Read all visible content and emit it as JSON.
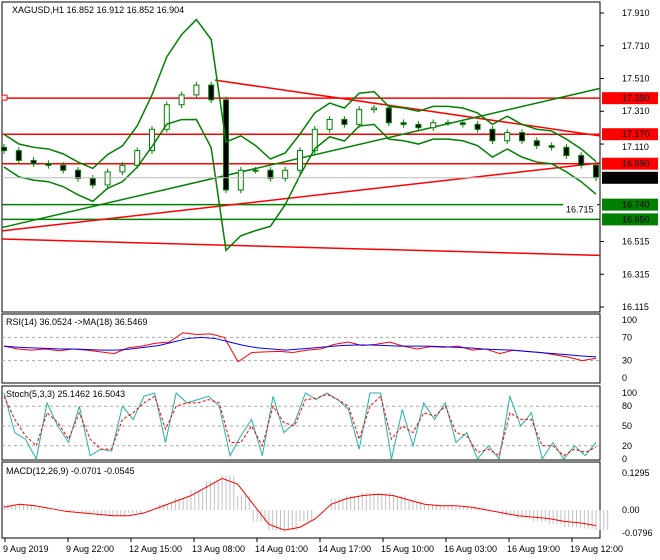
{
  "chart_data": {
    "type": "candlestick",
    "symbol_label": "XAGUSD,H1",
    "ohlc_label": "16.852 16.912 16.852 16.904",
    "price_axis": {
      "range": [
        16.115,
        17.91
      ],
      "ticks": [
        "17.910",
        "17.710",
        "17.510",
        "17.310",
        "17.110",
        "16.515",
        "16.315",
        "16.115"
      ]
    },
    "last_price": "16.904",
    "levels": [
      {
        "label": "17.390",
        "value": 17.39,
        "color": "#ff0000"
      },
      {
        "label": "17.170",
        "value": 17.17,
        "color": "#ff0000"
      },
      {
        "label": "16.990",
        "value": 16.99,
        "color": "#ff0000"
      },
      {
        "label": "16.740",
        "value": 16.74,
        "color": "#008000"
      },
      {
        "label": "16.650",
        "value": 16.65,
        "color": "#008000"
      }
    ],
    "hidden_label": "16.715",
    "closes": [
      17.07,
      17.01,
      16.99,
      16.98,
      16.95,
      16.9,
      16.86,
      16.94,
      16.98,
      17.07,
      17.2,
      17.35,
      17.41,
      17.47,
      17.38,
      16.83,
      16.95,
      16.95,
      16.9,
      16.95,
      17.07,
      17.2,
      17.26,
      17.23,
      17.32,
      17.33,
      17.24,
      17.23,
      17.21,
      17.24,
      17.24,
      17.23,
      17.2,
      17.13,
      17.18,
      17.13,
      17.1,
      17.09,
      17.04,
      16.98,
      16.904
    ],
    "time_labels": [
      "9 Aug 2019",
      "9 Aug 22:00",
      "12 Aug 15:00",
      "13 Aug 08:00",
      "14 Aug 01:00",
      "14 Aug 17:00",
      "15 Aug 10:00",
      "16 Aug 03:00",
      "16 Aug 19:00",
      "19 Aug 12:00"
    ],
    "rsi": {
      "label": "RSI(14) 36.0524  ->MA(18) 36.5469",
      "ticks": [
        "100",
        "70",
        "30",
        "0"
      ],
      "levels": [
        70,
        30
      ],
      "values": [
        55,
        50,
        48,
        50,
        47,
        50,
        48,
        45,
        42,
        52,
        55,
        60,
        62,
        78,
        75,
        76,
        70,
        28,
        44,
        45,
        46,
        44,
        48,
        50,
        58,
        62,
        56,
        58,
        62,
        55,
        50,
        54,
        53,
        55,
        48,
        50,
        42,
        48,
        46,
        44,
        40,
        36,
        30,
        34
      ],
      "ma_values": [
        55,
        53,
        52,
        51,
        50,
        50,
        49,
        48,
        48,
        50,
        53,
        56,
        62,
        68,
        70,
        68,
        62,
        56,
        52,
        50,
        48,
        50,
        52,
        54,
        56,
        57,
        57,
        56,
        55,
        55,
        55,
        54,
        53,
        52,
        50,
        49,
        48,
        46,
        44,
        42,
        40,
        38,
        36.5
      ]
    },
    "stoch": {
      "label": "Stoch(5,3,3) 25.1462 16.5043",
      "ticks": [
        "100",
        "80",
        "50",
        "20",
        "0"
      ],
      "levels": [
        80,
        50,
        20
      ],
      "main_values": [
        100,
        40,
        30,
        0,
        85,
        50,
        25,
        80,
        5,
        15,
        12,
        80,
        60,
        95,
        100,
        25,
        100,
        85,
        90,
        95,
        80,
        5,
        35,
        60,
        5,
        95,
        40,
        55,
        100,
        90,
        100,
        90,
        75,
        15,
        100,
        100,
        0,
        75,
        20,
        85,
        60,
        85,
        25,
        40,
        0,
        20,
        0,
        95,
        50,
        70,
        0,
        25,
        0,
        20,
        5,
        25
      ],
      "signal_values": [
        95,
        60,
        35,
        20,
        70,
        55,
        30,
        70,
        30,
        15,
        15,
        60,
        70,
        85,
        95,
        45,
        80,
        85,
        85,
        90,
        85,
        25,
        25,
        50,
        20,
        80,
        55,
        50,
        90,
        92,
        98,
        90,
        80,
        30,
        80,
        95,
        30,
        50,
        40,
        70,
        65,
        80,
        40,
        35,
        10,
        15,
        5,
        70,
        60,
        60,
        20,
        20,
        5,
        15,
        10,
        18
      ]
    },
    "macd": {
      "label": "MACD(12,26,9) -0.0701 -0.0545",
      "ticks": [
        "0.1295",
        "0.00",
        "-0.0796"
      ],
      "range": [
        -0.0796,
        0.1295
      ],
      "histogram": [
        0.02,
        0.02,
        0.01,
        0.0,
        -0.005,
        -0.01,
        -0.02,
        -0.02,
        -0.01,
        0.0,
        0.02,
        0.04,
        0.07,
        0.1,
        0.12,
        0.05,
        -0.04,
        -0.07,
        -0.07,
        -0.04,
        0.0,
        0.04,
        0.05,
        0.06,
        0.06,
        0.05,
        0.03,
        0.02,
        0.015,
        0.01,
        0.01,
        0.0,
        -0.02,
        -0.03,
        -0.04,
        -0.05,
        -0.06,
        -0.065,
        -0.07
      ],
      "signal": [
        0.01,
        0.02,
        0.015,
        0.005,
        -0.005,
        -0.01,
        -0.015,
        -0.02,
        -0.02,
        -0.01,
        0.01,
        0.03,
        0.05,
        0.08,
        0.11,
        0.09,
        0.02,
        -0.05,
        -0.07,
        -0.06,
        -0.03,
        0.02,
        0.04,
        0.05,
        0.055,
        0.05,
        0.035,
        0.02,
        0.015,
        0.015,
        0.01,
        0.0,
        -0.01,
        -0.02,
        -0.025,
        -0.03,
        -0.04,
        -0.045,
        -0.0545
      ]
    },
    "colors": {
      "bull": "#008000",
      "bear": "#000000",
      "resistance": "#ff0000",
      "support": "#008000",
      "rsi": "#ff0000",
      "rsi_ma": "#0000ff",
      "stoch_main": "#20b2aa",
      "stoch_signal": "#ff0000",
      "macd_hist": "#c0c0c0",
      "macd_signal": "#ff0000"
    }
  }
}
